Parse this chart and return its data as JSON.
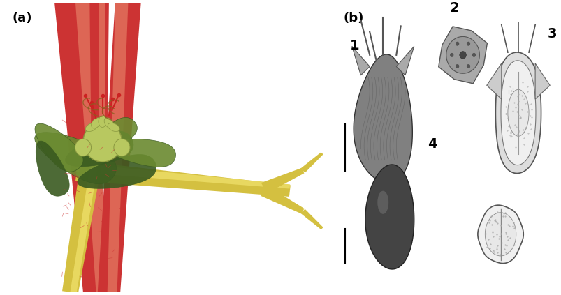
{
  "background_color": "#ffffff",
  "panel_a_label": "(a)",
  "panel_b_label": "(b)",
  "label_1": "1",
  "label_2": "2",
  "label_3": "3",
  "label_4": "4",
  "fig_width": 8.04,
  "fig_height": 4.23,
  "label_fontsize": 13,
  "number_fontsize": 12,
  "bg_a": "#f5f0e8",
  "bg_b": "#f8f5ee",
  "red_color": "#cc3333",
  "red_light": "#dd6655",
  "yellow_color": "#d4c040",
  "yellow_light": "#e8d860",
  "green_dark": "#3a5a20",
  "green_med": "#6a8a30",
  "bud_color": "#b8c860",
  "bud_dark": "#8a9840"
}
